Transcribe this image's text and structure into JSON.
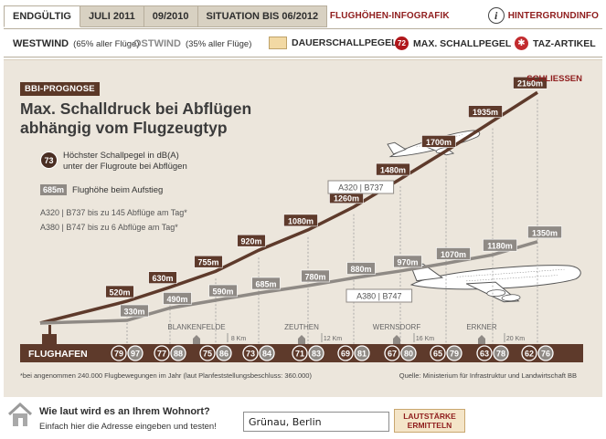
{
  "tabs": [
    {
      "label": "ENDGÜLTIG"
    },
    {
      "label": "JULI 2011"
    },
    {
      "label": "09/2010"
    },
    {
      "label": "SITUATION BIS 06/2012"
    }
  ],
  "top_links": {
    "infografik": "FLUGHÖHEN-INFOGRAFIK",
    "info": "HINTERGRUNDINFO"
  },
  "winds": {
    "west": {
      "label": "WESTWIND",
      "share": "(65% aller Flüge)"
    },
    "east": {
      "label": "OSTWIND",
      "share": "(35% aller Flüge)"
    }
  },
  "legend": {
    "dauerschall": "DAUERSCHALLPEGEL",
    "max_badge": "72",
    "max": "MAX. SCHALLPEGEL",
    "taz": "TAZ-ARTIKEL"
  },
  "panel": {
    "badge": "BBI-PROGNOSE",
    "title_line1": "Max. Schalldruck bei Abflügen",
    "title_line2": "abhängig vom Flugzeugtyp",
    "close": "SCHLIESSEN",
    "legend_circle": "73",
    "legend_line1": "Höchster Schallpegel in dB(A)",
    "legend_line2": "unter der Flugroute bei Abflügen",
    "legend_alt_box": "685m",
    "legend_alt_text": "Flughöhe beim Aufstieg",
    "note1": "A320 | B737 bis zu 145 Abflüge am Tag*",
    "note2": "A380 | B747 bis zu 6 Abflüge am Tag*",
    "footnote": "*bei angenommen 240.000 Flugbewegungen im Jahr  (laut Planfeststellungsbeschluss: 360.000)",
    "source": "Quelle: Ministerium für Infrastruktur und Landwirtschaft BB"
  },
  "chart_data": {
    "type": "line",
    "start_label": "FLUGHAFEN",
    "series": [
      {
        "name": "A320 | B737",
        "color": "#5e3a2b",
        "altitudes": [
          "520m",
          "630m",
          "755m",
          "920m",
          "1080m",
          "1260m",
          "1480m",
          "1700m",
          "1935m",
          "2160m"
        ],
        "db": [
          79,
          77,
          75,
          73,
          71,
          69,
          67,
          65,
          63,
          62
        ]
      },
      {
        "name": "A380 | B747",
        "color": "#8f8a85",
        "altitudes": [
          "330m",
          "490m",
          "590m",
          "685m",
          "780m",
          "880m",
          "970m",
          "1070m",
          "1180m",
          "1350m"
        ],
        "db": [
          97,
          88,
          86,
          84,
          83,
          81,
          80,
          79,
          78,
          76
        ]
      }
    ],
    "places": [
      "BLANKENFELDE",
      "ZEUTHEN",
      "WERNSDORF",
      "ERKNER"
    ],
    "km_labels": [
      "8 Km",
      "12 Km",
      "16 Km",
      "20 Km"
    ]
  },
  "bottom": {
    "question": "Wie laut wird es an Ihrem Wohnort?",
    "hint": "Einfach hier die Adresse eingeben und testen!",
    "address_value": "Grünau, Berlin",
    "button_line1": "LAUTSTÄRKE",
    "button_line2": "ERMITTELN"
  }
}
